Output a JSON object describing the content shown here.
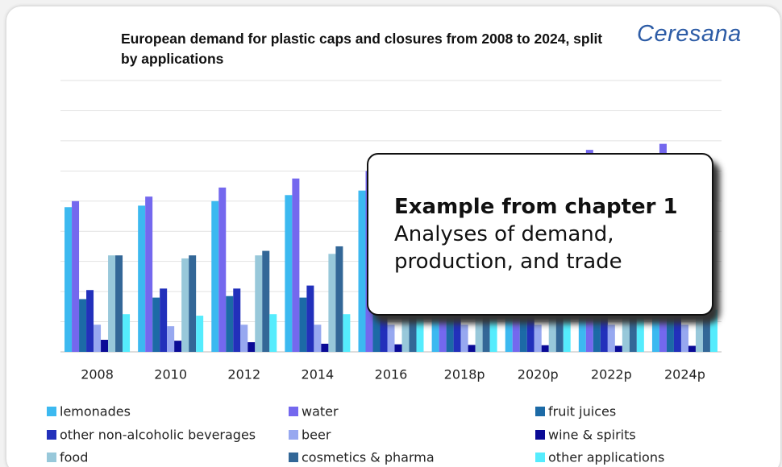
{
  "chart_data": {
    "type": "bar",
    "title": "European demand for plastic caps and closures from 2008 to 2024, split by applications",
    "logo": "Ceresana",
    "annotation": {
      "heading": "Example from chapter 1",
      "lines": [
        "Analyses of demand,",
        "production, and trade"
      ]
    },
    "categories": [
      "2008",
      "2010",
      "2012",
      "2014",
      "2016",
      "2018p",
      "2020p",
      "2022p",
      "2024p"
    ],
    "ylim": [
      0,
      9
    ],
    "yticks": [
      0,
      1,
      2,
      3,
      4,
      5,
      6,
      7,
      8,
      9
    ],
    "grid": true,
    "series": [
      {
        "name": "lemonades",
        "color": "#3cb9f0",
        "values": [
          4.8,
          4.85,
          5.0,
          5.2,
          5.35,
          5.5,
          5.65,
          5.8,
          5.95
        ]
      },
      {
        "name": "water",
        "color": "#7468ee",
        "values": [
          5.0,
          5.15,
          5.45,
          5.75,
          6.0,
          6.25,
          6.5,
          6.7,
          6.9
        ]
      },
      {
        "name": "fruit juices",
        "color": "#1c6aa6",
        "values": [
          1.75,
          1.8,
          1.85,
          1.8,
          1.8,
          1.8,
          1.8,
          1.8,
          1.8
        ]
      },
      {
        "name": "other non-alcoholic beverages",
        "color": "#2230bb",
        "values": [
          2.05,
          2.1,
          2.1,
          2.2,
          2.25,
          2.3,
          2.35,
          2.4,
          2.45
        ]
      },
      {
        "name": "beer",
        "color": "#97a8f0",
        "values": [
          0.9,
          0.85,
          0.9,
          0.9,
          0.9,
          0.9,
          0.9,
          0.9,
          0.9
        ]
      },
      {
        "name": "wine & spirits",
        "color": "#0a0a96",
        "values": [
          0.4,
          0.37,
          0.32,
          0.27,
          0.25,
          0.23,
          0.22,
          0.2,
          0.2
        ]
      },
      {
        "name": "food",
        "color": "#98c8da",
        "values": [
          3.2,
          3.1,
          3.2,
          3.25,
          3.3,
          3.35,
          3.4,
          3.45,
          3.5
        ]
      },
      {
        "name": "cosmetics & pharma",
        "color": "#336797",
        "values": [
          3.2,
          3.2,
          3.35,
          3.5,
          3.6,
          3.7,
          3.8,
          3.9,
          4.0
        ]
      },
      {
        "name": "other applications",
        "color": "#55ecfd",
        "values": [
          1.25,
          1.2,
          1.25,
          1.25,
          1.3,
          1.3,
          1.35,
          1.35,
          1.4
        ]
      }
    ]
  }
}
